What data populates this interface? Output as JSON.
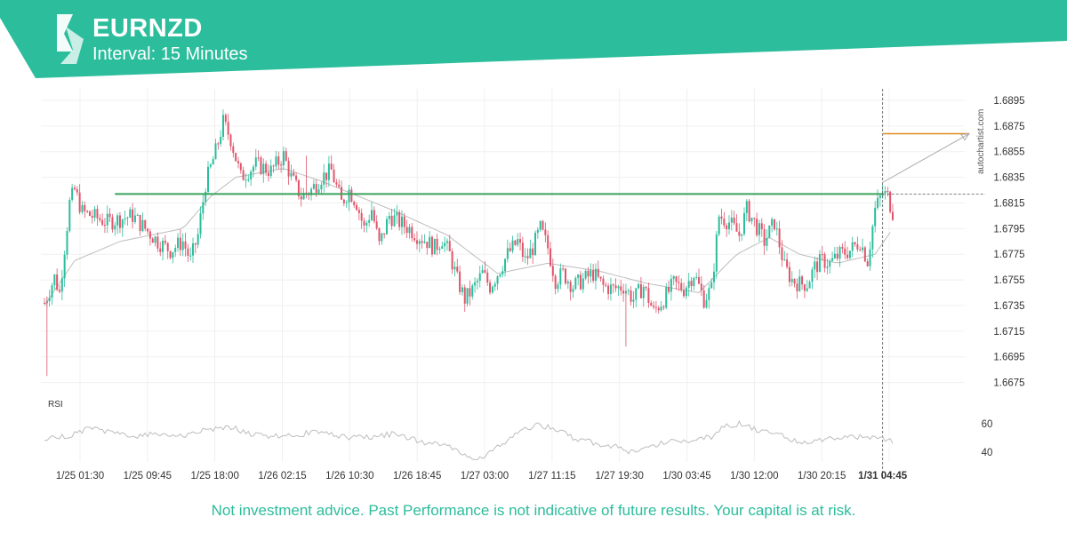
{
  "header": {
    "symbol": "EURNZD",
    "interval": "Interval: 15 Minutes"
  },
  "watermark": "autochartist.com",
  "disclaimer": "Not investment advice. Past Performance is not indicative of future results. Your capital is at risk.",
  "colors": {
    "brand": "#2bbd9c",
    "up_candle": "#2bbd9c",
    "down_candle": "#e0556b",
    "resistance": "#3aa35c",
    "target": "#e08a1e",
    "moving_average": "#bdbdbd",
    "rsi": "#bdbdbd",
    "grid": "#f0f0f0"
  },
  "chart_data": {
    "type": "candlestick",
    "price_axis": {
      "ticks": [
        "1.6895",
        "1.6875",
        "1.6855",
        "1.6835",
        "1.6815",
        "1.6795",
        "1.6775",
        "1.6755",
        "1.6735",
        "1.6715",
        "1.6695",
        "1.6675"
      ],
      "range": [
        1.6665,
        1.6904
      ]
    },
    "time_axis": {
      "ticks": [
        "1/25 01:30",
        "1/25 09:45",
        "1/25 18:00",
        "1/26 02:15",
        "1/26 10:30",
        "1/26 18:45",
        "1/27 03:00",
        "1/27 11:15",
        "1/27 19:30",
        "1/30 03:45",
        "1/30 12:00",
        "1/30 20:15",
        "1/31 04:45"
      ],
      "highlight_tick": "1/31 04:45"
    },
    "price_path": [
      [
        0,
        1.6737
      ],
      [
        4,
        1.6757
      ],
      [
        6,
        1.6745
      ],
      [
        10,
        1.6815
      ],
      [
        12,
        1.6825
      ],
      [
        15,
        1.6808
      ],
      [
        25,
        1.68
      ],
      [
        35,
        1.6805
      ],
      [
        40,
        1.6795
      ],
      [
        45,
        1.6785
      ],
      [
        50,
        1.6778
      ],
      [
        55,
        1.6785
      ],
      [
        58,
        1.677
      ],
      [
        61,
        1.679
      ],
      [
        64,
        1.683
      ],
      [
        68,
        1.6855
      ],
      [
        71,
        1.6878
      ],
      [
        74,
        1.6865
      ],
      [
        78,
        1.6835
      ],
      [
        84,
        1.6845
      ],
      [
        90,
        1.684
      ],
      [
        95,
        1.6852
      ],
      [
        98,
        1.6835
      ],
      [
        102,
        1.682
      ],
      [
        106,
        1.6825
      ],
      [
        110,
        1.6835
      ],
      [
        114,
        1.684
      ],
      [
        118,
        1.6815
      ],
      [
        121,
        1.6825
      ],
      [
        124,
        1.6815
      ],
      [
        127,
        1.6795
      ],
      [
        130,
        1.681
      ],
      [
        133,
        1.6782
      ],
      [
        137,
        1.6805
      ],
      [
        141,
        1.68
      ],
      [
        145,
        1.6795
      ],
      [
        148,
        1.679
      ],
      [
        152,
        1.6785
      ],
      [
        155,
        1.678
      ],
      [
        158,
        1.6787
      ],
      [
        161,
        1.6775
      ],
      [
        164,
        1.6755
      ],
      [
        167,
        1.674
      ],
      [
        170,
        1.6747
      ],
      [
        174,
        1.676
      ],
      [
        177,
        1.675
      ],
      [
        180,
        1.676
      ],
      [
        184,
        1.6775
      ],
      [
        188,
        1.6785
      ],
      [
        191,
        1.677
      ],
      [
        194,
        1.678
      ],
      [
        197,
        1.6795
      ],
      [
        200,
        1.678
      ],
      [
        203,
        1.6755
      ],
      [
        206,
        1.676
      ],
      [
        210,
        1.675
      ],
      [
        214,
        1.6755
      ],
      [
        218,
        1.676
      ],
      [
        222,
        1.675
      ],
      [
        226,
        1.6748
      ],
      [
        230,
        1.675
      ],
      [
        234,
        1.674
      ],
      [
        238,
        1.675
      ],
      [
        242,
        1.673
      ],
      [
        246,
        1.674
      ],
      [
        250,
        1.6752
      ],
      [
        254,
        1.6748
      ],
      [
        258,
        1.676
      ],
      [
        262,
        1.674
      ],
      [
        265,
        1.6748
      ],
      [
        268,
        1.6805
      ],
      [
        272,
        1.68
      ],
      [
        276,
        1.679
      ],
      [
        279,
        1.681
      ],
      [
        282,
        1.68
      ],
      [
        286,
        1.6785
      ],
      [
        290,
        1.68
      ],
      [
        294,
        1.6765
      ],
      [
        297,
        1.6755
      ],
      [
        300,
        1.6752
      ],
      [
        303,
        1.6752
      ],
      [
        306,
        1.6765
      ],
      [
        309,
        1.677
      ],
      [
        312,
        1.6768
      ],
      [
        316,
        1.6775
      ],
      [
        320,
        1.6778
      ],
      [
        324,
        1.6785
      ],
      [
        327,
        1.677
      ],
      [
        330,
        1.681
      ],
      [
        333,
        1.6823
      ],
      [
        335,
        1.682
      ],
      [
        337,
        1.6808
      ]
    ],
    "moving_average_path": [
      [
        0,
        1.6735
      ],
      [
        12,
        1.677
      ],
      [
        30,
        1.6785
      ],
      [
        55,
        1.6795
      ],
      [
        66,
        1.682
      ],
      [
        76,
        1.6835
      ],
      [
        95,
        1.6842
      ],
      [
        110,
        1.6832
      ],
      [
        125,
        1.682
      ],
      [
        140,
        1.6808
      ],
      [
        160,
        1.679
      ],
      [
        180,
        1.676
      ],
      [
        200,
        1.6768
      ],
      [
        220,
        1.6762
      ],
      [
        240,
        1.6752
      ],
      [
        260,
        1.6745
      ],
      [
        275,
        1.6775
      ],
      [
        288,
        1.6788
      ],
      [
        300,
        1.6775
      ],
      [
        315,
        1.6768
      ],
      [
        330,
        1.6775
      ],
      [
        337,
        1.6795
      ]
    ],
    "resistance_level": 1.6822,
    "resistance_start_index": 28,
    "target_level": 1.6869,
    "forecast_start_price": 1.6831,
    "rsi": {
      "label": "RSI",
      "ticks": [
        "60",
        "40"
      ],
      "range": [
        33,
        72
      ],
      "path": [
        [
          0,
          49
        ],
        [
          10,
          52
        ],
        [
          20,
          58
        ],
        [
          25,
          54
        ],
        [
          35,
          51
        ],
        [
          45,
          53
        ],
        [
          55,
          51
        ],
        [
          60,
          55
        ],
        [
          65,
          56
        ],
        [
          75,
          58
        ],
        [
          80,
          53
        ],
        [
          90,
          51
        ],
        [
          100,
          52
        ],
        [
          110,
          55
        ],
        [
          120,
          50
        ],
        [
          130,
          51
        ],
        [
          140,
          53
        ],
        [
          150,
          47
        ],
        [
          160,
          45
        ],
        [
          168,
          36
        ],
        [
          173,
          35
        ],
        [
          180,
          44
        ],
        [
          190,
          56
        ],
        [
          196,
          59
        ],
        [
          202,
          57
        ],
        [
          210,
          50
        ],
        [
          220,
          46
        ],
        [
          228,
          44
        ],
        [
          232,
          40
        ],
        [
          238,
          43
        ],
        [
          248,
          47
        ],
        [
          258,
          48
        ],
        [
          265,
          51
        ],
        [
          270,
          58
        ],
        [
          276,
          60
        ],
        [
          284,
          55
        ],
        [
          292,
          52
        ],
        [
          300,
          47
        ],
        [
          310,
          49
        ],
        [
          320,
          50
        ],
        [
          330,
          51
        ],
        [
          337,
          48
        ]
      ]
    },
    "candle_count": 338
  }
}
